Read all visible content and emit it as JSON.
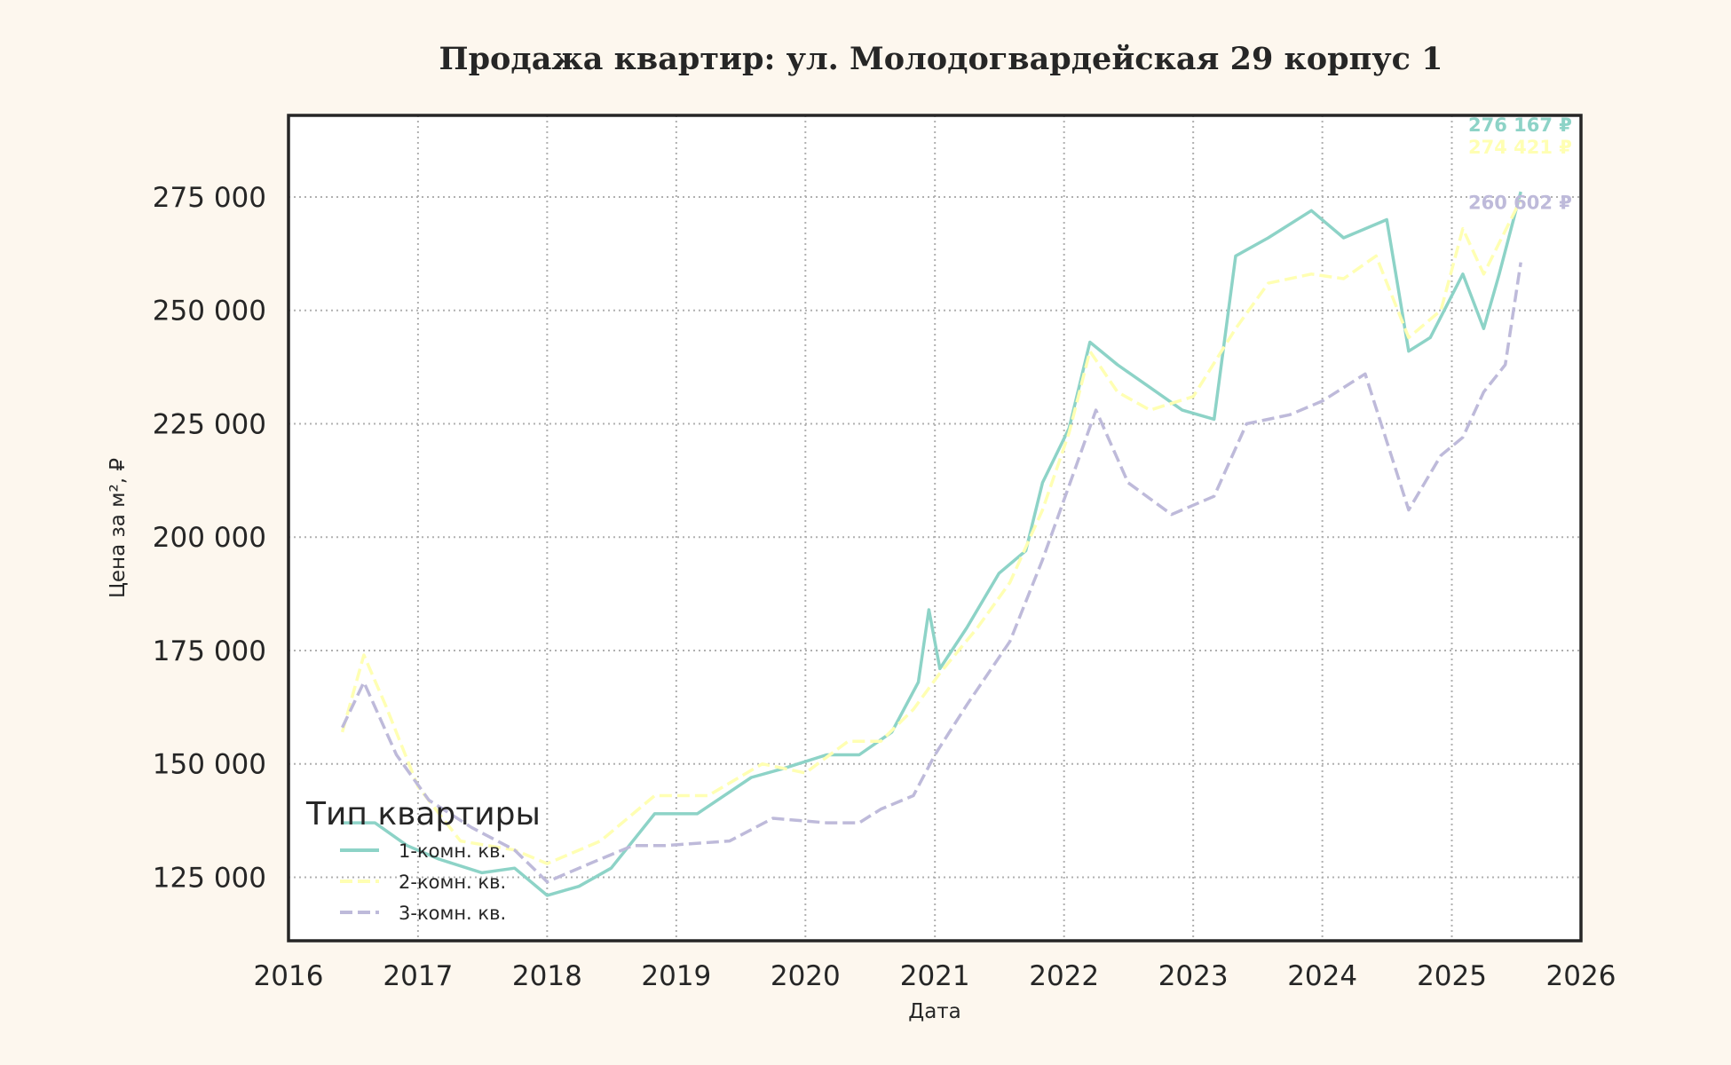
{
  "chart_data": {
    "type": "line",
    "title": "Продажа квартир: ул. Молодогвардейская 29 корпус 1",
    "xlabel": "Дата",
    "ylabel": "Цена за м², ₽",
    "xlim": [
      "2016-01-01",
      "2026-01-01"
    ],
    "ylim": [
      111000,
      293000
    ],
    "x_ticks": [
      "2016",
      "2017",
      "2018",
      "2019",
      "2020",
      "2021",
      "2022",
      "2023",
      "2024",
      "2025",
      "2026"
    ],
    "y_ticks": [
      {
        "value": 125000,
        "label": "125 000"
      },
      {
        "value": 150000,
        "label": "150 000"
      },
      {
        "value": 175000,
        "label": "175 000"
      },
      {
        "value": 200000,
        "label": "200 000"
      },
      {
        "value": 225000,
        "label": "225 000"
      },
      {
        "value": 250000,
        "label": "250 000"
      },
      {
        "value": 275000,
        "label": "275 000"
      }
    ],
    "grid": true,
    "legend": {
      "title": "Тип квартиры",
      "position": "bottom-left"
    },
    "series": [
      {
        "name": "1-комн. кв.",
        "color": "#8dd3c7",
        "dash": "solid",
        "end_label": "276 167 ₽",
        "points": [
          [
            "2016-06-01",
            137000
          ],
          [
            "2016-09-01",
            137000
          ],
          [
            "2016-12-01",
            132000
          ],
          [
            "2017-03-01",
            129000
          ],
          [
            "2017-07-01",
            126000
          ],
          [
            "2017-10-01",
            127000
          ],
          [
            "2018-01-01",
            121000
          ],
          [
            "2018-04-01",
            123000
          ],
          [
            "2018-07-01",
            127000
          ],
          [
            "2018-11-01",
            139000
          ],
          [
            "2019-03-01",
            139000
          ],
          [
            "2019-08-01",
            147000
          ],
          [
            "2019-11-01",
            149000
          ],
          [
            "2020-03-01",
            152000
          ],
          [
            "2020-06-01",
            152000
          ],
          [
            "2020-09-01",
            157000
          ],
          [
            "2020-11-15",
            168000
          ],
          [
            "2020-12-15",
            184000
          ],
          [
            "2021-01-15",
            171000
          ],
          [
            "2021-04-01",
            180000
          ],
          [
            "2021-07-01",
            192000
          ],
          [
            "2021-09-15",
            197000
          ],
          [
            "2021-11-01",
            212000
          ],
          [
            "2022-01-15",
            224000
          ],
          [
            "2022-03-15",
            243000
          ],
          [
            "2022-06-01",
            238000
          ],
          [
            "2022-09-01",
            233000
          ],
          [
            "2022-12-01",
            228000
          ],
          [
            "2023-03-01",
            226000
          ],
          [
            "2023-05-01",
            262000
          ],
          [
            "2023-08-01",
            266000
          ],
          [
            "2023-12-01",
            272000
          ],
          [
            "2024-03-01",
            266000
          ],
          [
            "2024-07-01",
            270000
          ],
          [
            "2024-09-01",
            241000
          ],
          [
            "2024-11-01",
            244000
          ],
          [
            "2025-02-01",
            258000
          ],
          [
            "2025-04-01",
            246000
          ],
          [
            "2025-05-15",
            258000
          ],
          [
            "2025-07-15",
            276167
          ]
        ]
      },
      {
        "name": "2-комн. кв.",
        "color": "#ffffb3",
        "dash": "dashed",
        "end_label": "274 421 ₽",
        "points": [
          [
            "2016-06-01",
            157000
          ],
          [
            "2016-08-01",
            174000
          ],
          [
            "2016-10-01",
            163000
          ],
          [
            "2017-01-01",
            145000
          ],
          [
            "2017-05-01",
            133000
          ],
          [
            "2017-10-01",
            131000
          ],
          [
            "2018-01-01",
            128000
          ],
          [
            "2018-06-01",
            133000
          ],
          [
            "2018-11-01",
            143000
          ],
          [
            "2019-04-01",
            143000
          ],
          [
            "2019-09-01",
            150000
          ],
          [
            "2020-01-01",
            148000
          ],
          [
            "2020-05-01",
            155000
          ],
          [
            "2020-08-01",
            155000
          ],
          [
            "2020-11-01",
            162000
          ],
          [
            "2021-01-15",
            170000
          ],
          [
            "2021-05-01",
            180000
          ],
          [
            "2021-08-01",
            190000
          ],
          [
            "2021-11-01",
            206000
          ],
          [
            "2022-01-15",
            223000
          ],
          [
            "2022-03-15",
            241000
          ],
          [
            "2022-06-01",
            232000
          ],
          [
            "2022-09-01",
            228000
          ],
          [
            "2023-01-01",
            231000
          ],
          [
            "2023-05-01",
            246000
          ],
          [
            "2023-08-01",
            256000
          ],
          [
            "2023-12-01",
            258000
          ],
          [
            "2024-03-01",
            257000
          ],
          [
            "2024-06-01",
            262000
          ],
          [
            "2024-09-01",
            244000
          ],
          [
            "2024-12-01",
            250000
          ],
          [
            "2025-02-01",
            268000
          ],
          [
            "2025-04-01",
            258000
          ],
          [
            "2025-07-15",
            274421
          ]
        ]
      },
      {
        "name": "3-комн. кв.",
        "color": "#bebada",
        "dash": "dashed",
        "end_label": "260 602 ₽",
        "points": [
          [
            "2016-06-01",
            158000
          ],
          [
            "2016-08-01",
            168000
          ],
          [
            "2016-11-01",
            152000
          ],
          [
            "2017-02-01",
            142000
          ],
          [
            "2017-06-01",
            136000
          ],
          [
            "2017-10-01",
            131000
          ],
          [
            "2018-01-01",
            124000
          ],
          [
            "2018-05-01",
            128000
          ],
          [
            "2018-09-01",
            132000
          ],
          [
            "2018-12-01",
            132000
          ],
          [
            "2019-06-01",
            133000
          ],
          [
            "2019-10-01",
            138000
          ],
          [
            "2020-03-01",
            137000
          ],
          [
            "2020-06-01",
            137000
          ],
          [
            "2020-08-01",
            140000
          ],
          [
            "2020-11-01",
            143000
          ],
          [
            "2021-01-01",
            152000
          ],
          [
            "2021-04-01",
            163000
          ],
          [
            "2021-08-01",
            177000
          ],
          [
            "2021-11-01",
            195000
          ],
          [
            "2022-02-01",
            215000
          ],
          [
            "2022-04-01",
            228000
          ],
          [
            "2022-07-01",
            212000
          ],
          [
            "2022-11-01",
            205000
          ],
          [
            "2023-03-01",
            209000
          ],
          [
            "2023-06-01",
            225000
          ],
          [
            "2023-10-01",
            227000
          ],
          [
            "2024-01-01",
            230000
          ],
          [
            "2024-05-01",
            236000
          ],
          [
            "2024-09-01",
            206000
          ],
          [
            "2024-12-01",
            218000
          ],
          [
            "2025-02-01",
            222000
          ],
          [
            "2025-04-01",
            232000
          ],
          [
            "2025-06-01",
            238000
          ],
          [
            "2025-07-15",
            260602
          ]
        ]
      }
    ]
  }
}
